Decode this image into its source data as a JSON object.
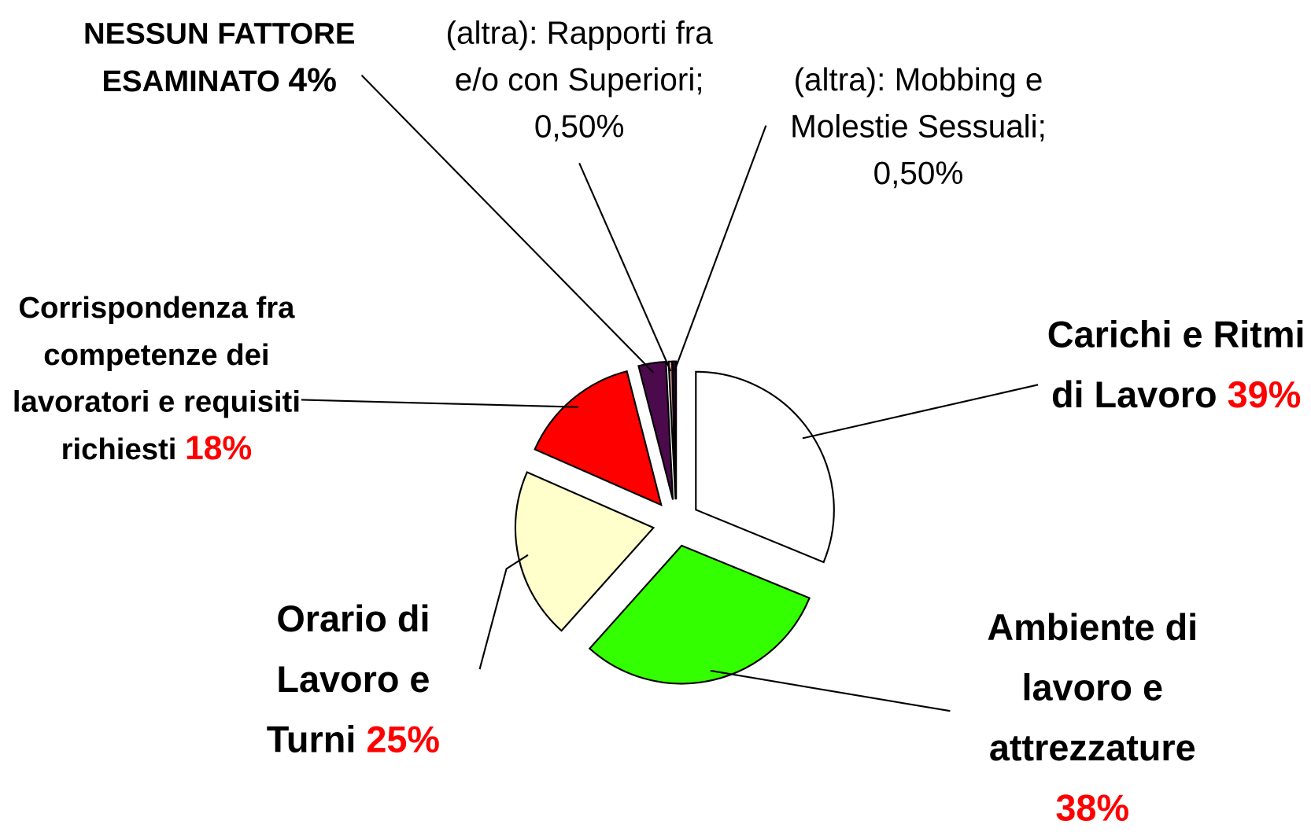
{
  "chart_data": {
    "type": "pie",
    "categories": [
      "Carichi e Ritmi di Lavoro",
      "Ambiente di lavoro e attrezzature",
      "Orario di Lavoro e Turni",
      "Corrispondenza fra competenze dei lavoratori e requisiti richiesti",
      "NESSUN FATTORE ESAMINATO",
      "(altra): Rapporti fra e/o con Superiori;",
      "(altra): Mobbing e Molestie Sessuali;"
    ],
    "values": [
      39,
      38,
      25,
      18,
      4,
      0.5,
      0.5
    ],
    "value_labels": [
      "39%",
      "38%",
      "25%",
      "18%",
      "4%",
      "0,50%",
      "0,50%"
    ],
    "colors": [
      "#ffffff",
      "#33ff00",
      "#ffffcc",
      "#ff0000",
      "#4b0a4b",
      "#cc9999",
      "#330033"
    ]
  }
}
